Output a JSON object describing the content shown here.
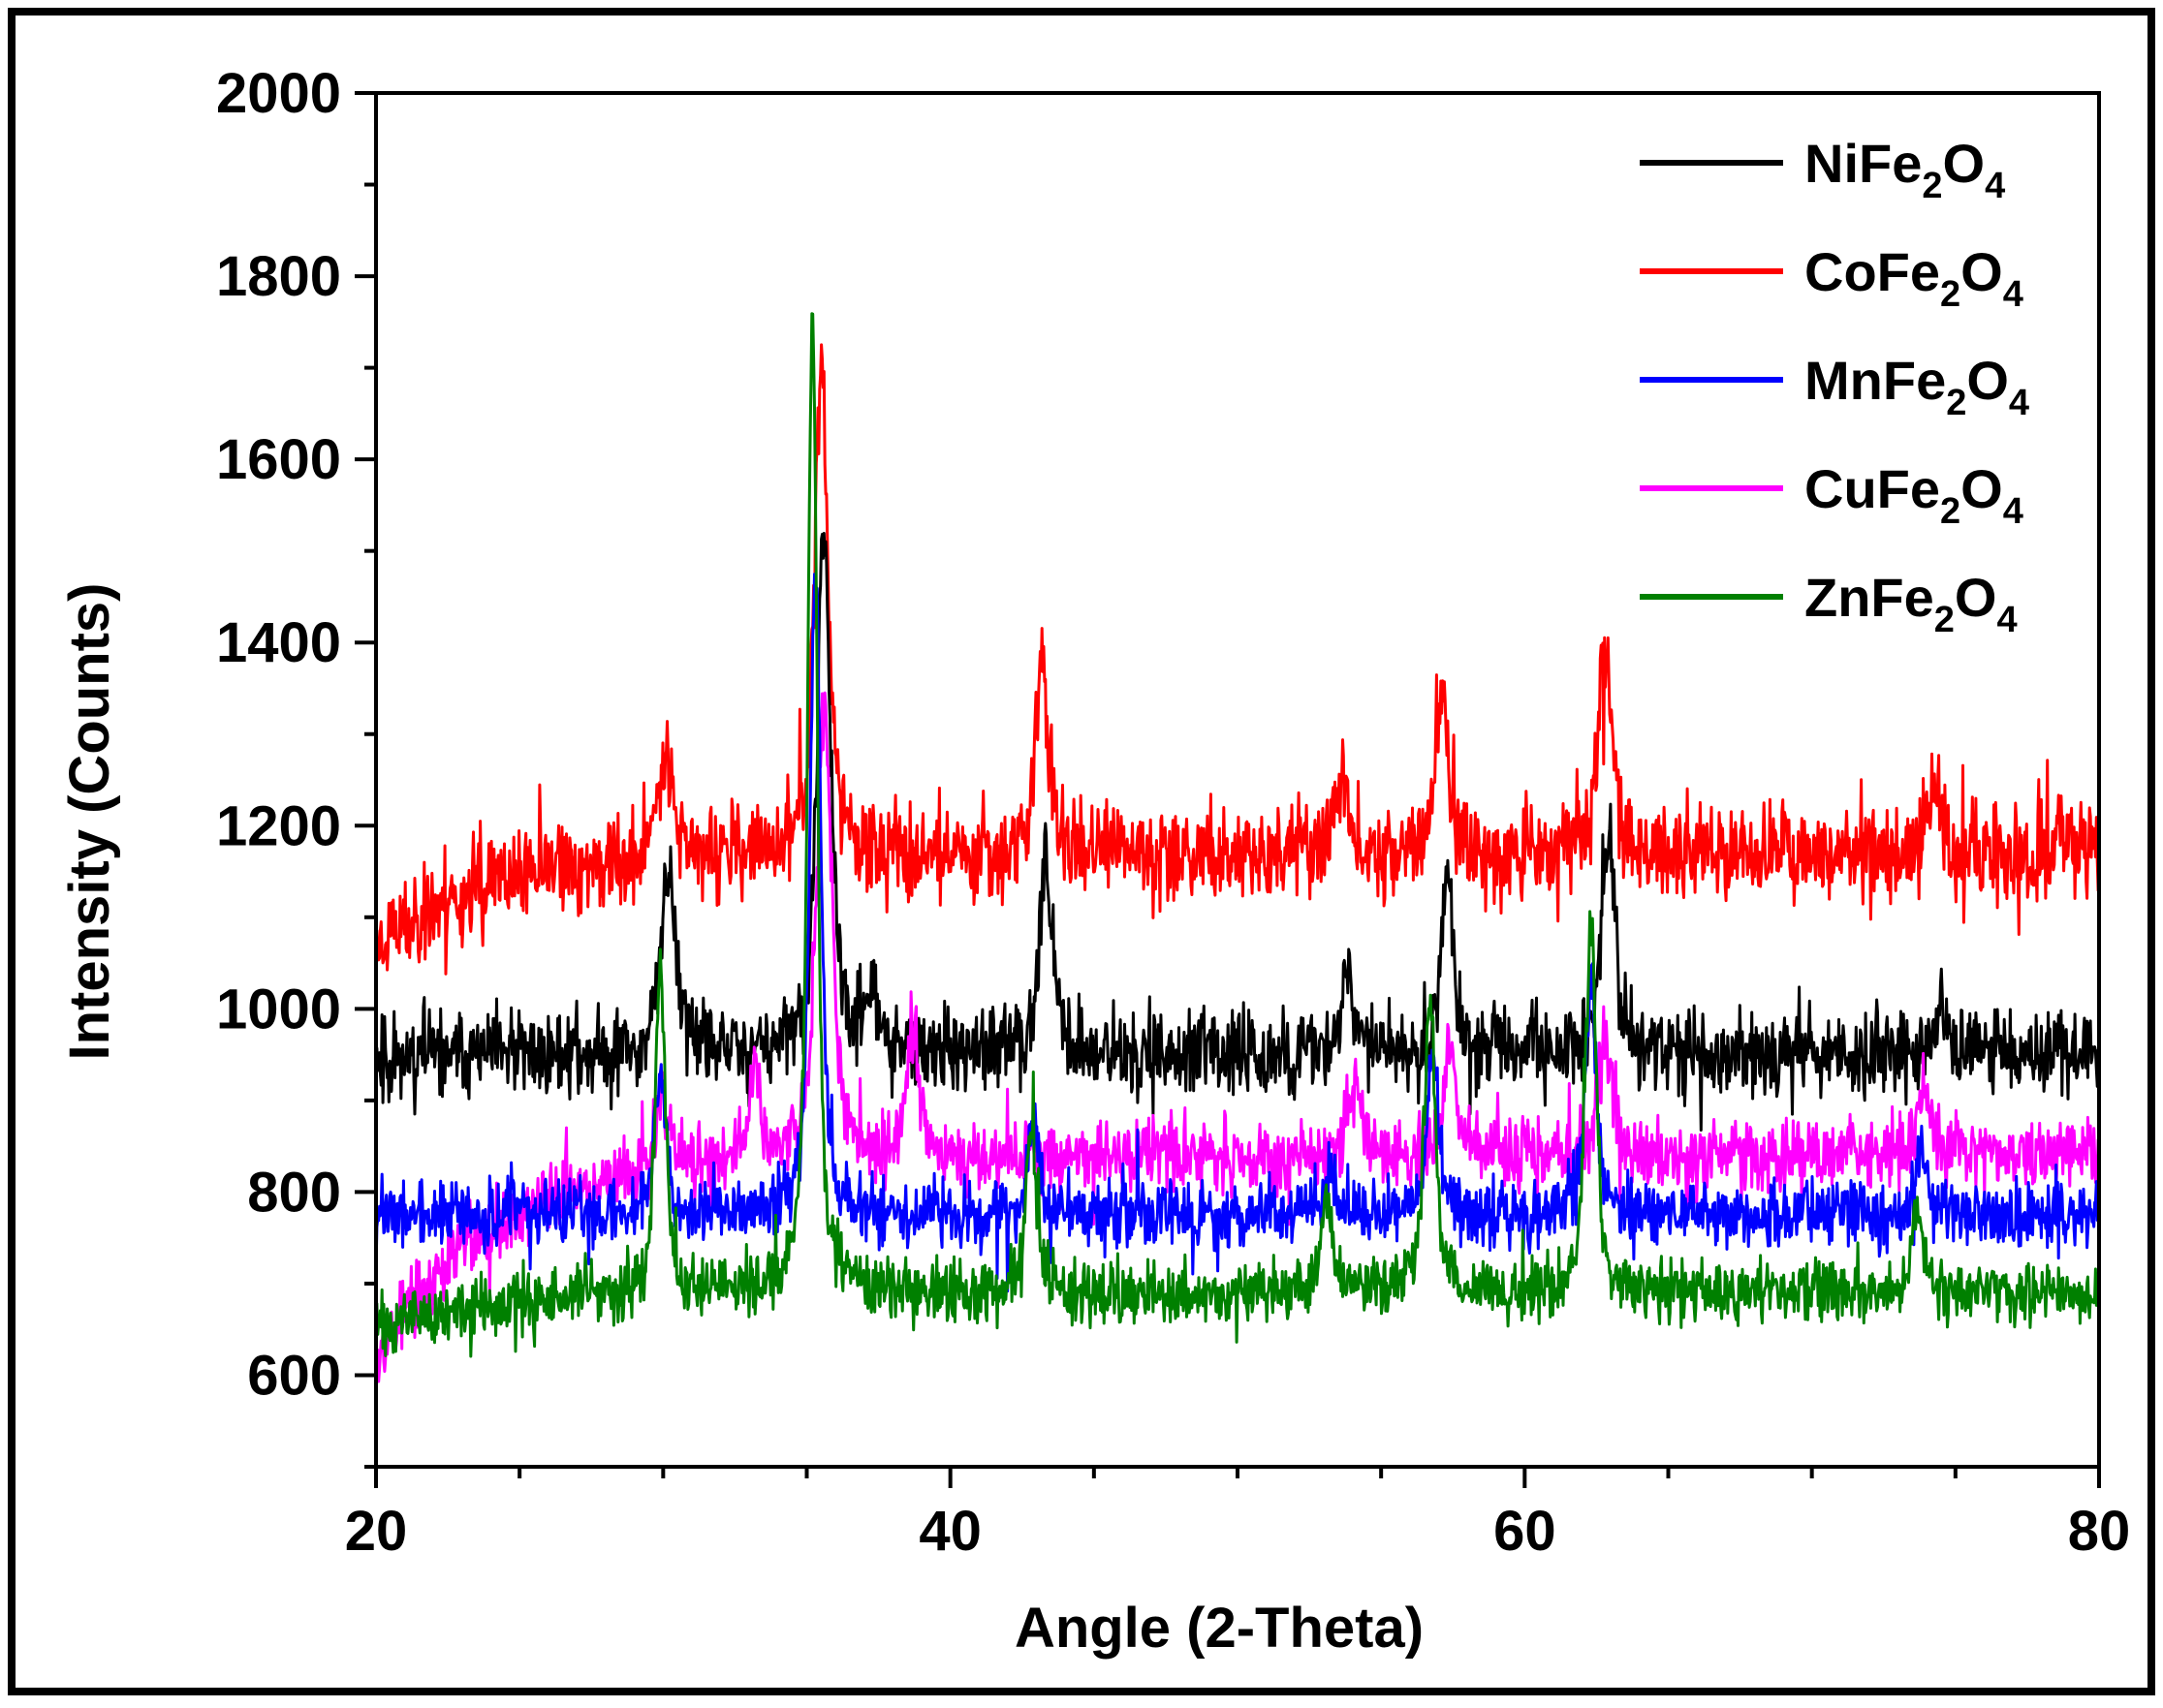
{
  "chart_data": {
    "type": "line",
    "title": "",
    "xlabel": "Angle (2-Theta)",
    "ylabel": "Intensity (Counts)",
    "xlim": [
      20,
      80
    ],
    "ylim": [
      500,
      2000
    ],
    "x_ticks": [
      "20",
      "40",
      "60",
      "80"
    ],
    "y_ticks": [
      "600",
      "800",
      "1000",
      "1200",
      "1400",
      "1600",
      "1800",
      "2000"
    ],
    "legend_position": "top-right",
    "series": [
      {
        "name": "NiFe2O4",
        "label_parts": [
          "NiFe",
          "2",
          "O",
          "4"
        ],
        "color": "#000000",
        "baseline": 950,
        "noise": 45,
        "drift": 0,
        "seed": 11,
        "peaks": [
          [
            30.2,
            200,
            0.35
          ],
          [
            35.6,
            580,
            0.3
          ],
          [
            37.2,
            70,
            0.3
          ],
          [
            43.3,
            220,
            0.3
          ],
          [
            53.8,
            90,
            0.3
          ],
          [
            57.3,
            190,
            0.3
          ],
          [
            62.9,
            250,
            0.3
          ],
          [
            74.5,
            60,
            0.3
          ]
        ]
      },
      {
        "name": "CoFe2O4",
        "label_parts": [
          "CoFe",
          "2",
          "O",
          "4"
        ],
        "color": "#ff0000",
        "baseline": 1170,
        "noise": 50,
        "drift": 100,
        "seed": 23,
        "peaks": [
          [
            30.1,
            130,
            0.35
          ],
          [
            35.5,
            540,
            0.3
          ],
          [
            43.2,
            210,
            0.3
          ],
          [
            53.6,
            80,
            0.3
          ],
          [
            57.1,
            170,
            0.3
          ],
          [
            62.8,
            200,
            0.35
          ],
          [
            74.3,
            80,
            0.3
          ]
        ]
      },
      {
        "name": "MnFe2O4",
        "label_parts": [
          "MnFe",
          "2",
          "O",
          "4"
        ],
        "color": "#0000ff",
        "baseline": 775,
        "noise": 35,
        "drift": 0,
        "seed": 37,
        "peaks": [
          [
            29.9,
            150,
            0.3
          ],
          [
            35.3,
            700,
            0.25
          ],
          [
            42.9,
            90,
            0.25
          ],
          [
            53.2,
            50,
            0.25
          ],
          [
            56.8,
            180,
            0.25
          ],
          [
            62.3,
            260,
            0.25
          ],
          [
            73.8,
            70,
            0.25
          ]
        ]
      },
      {
        "name": "CuFe2O4",
        "label_parts": [
          "CuFe",
          "2",
          "O",
          "4"
        ],
        "color": "#ff00ff",
        "baseline": 840,
        "noise": 38,
        "drift": 220,
        "seed": 53,
        "peaks": [
          [
            30.0,
            80,
            0.3
          ],
          [
            33.2,
            100,
            0.25
          ],
          [
            35.6,
            500,
            0.35
          ],
          [
            38.7,
            130,
            0.3
          ],
          [
            54.0,
            70,
            0.3
          ],
          [
            57.4,
            110,
            0.3
          ],
          [
            62.8,
            130,
            0.3
          ],
          [
            73.9,
            80,
            0.3
          ]
        ]
      },
      {
        "name": "ZnFe2O4",
        "label_parts": [
          "ZnFe",
          "2",
          "O",
          "4"
        ],
        "color": "#008000",
        "baseline": 690,
        "noise": 32,
        "drift": 40,
        "seed": 71,
        "peaks": [
          [
            29.9,
            360,
            0.25
          ],
          [
            35.2,
            1060,
            0.22
          ],
          [
            42.8,
            180,
            0.25
          ],
          [
            53.1,
            110,
            0.25
          ],
          [
            56.7,
            320,
            0.25
          ],
          [
            62.3,
            400,
            0.25
          ],
          [
            73.7,
            100,
            0.25
          ]
        ]
      }
    ]
  }
}
